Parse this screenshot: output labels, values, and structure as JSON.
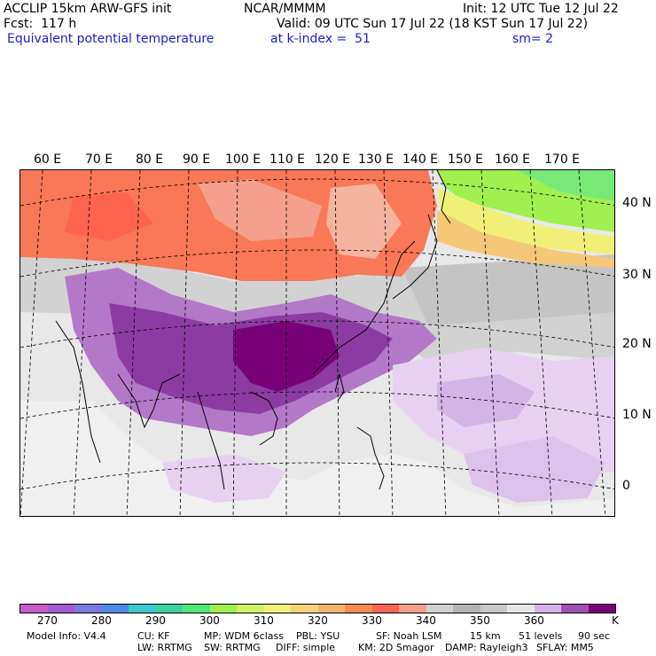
{
  "header": {
    "model": "ACCLIP 15km ARW-GFS init",
    "org": "NCAR/MMMM",
    "init": "Init: 12 UTC Tue 12 Jul 22",
    "forecast": "Fcst:  117 h",
    "valid": "Valid: 09 UTC Sun 17 Jul 22 (18 KST Sun 17 Jul 22)",
    "field": "Equivalent potential temperature",
    "level": "at k-index =  51",
    "smoothing": "sm= 2"
  },
  "longitude_labels": [
    "60 E",
    "70 E",
    "80 E",
    "90 E",
    "100 E",
    "110 E",
    "120 E",
    "130 E",
    "140 E",
    "150 E",
    "160 E",
    "170 E"
  ],
  "latitude_labels": [
    "40 N",
    "30 N",
    "20 N",
    "10 N",
    "0"
  ],
  "colorbar": {
    "colors": [
      "#c85cc8",
      "#a05ad2",
      "#7a78e0",
      "#4a8ae6",
      "#3cc8c8",
      "#3ad2a0",
      "#50e678",
      "#a0f050",
      "#d2f064",
      "#f0f078",
      "#f5d278",
      "#f5b46e",
      "#f58c50",
      "#ff6450",
      "#f5a08c",
      "#d2d2d2",
      "#b4b4b4",
      "#c8c8c8",
      "#e6e6e6",
      "#d2b4e6",
      "#a050b4",
      "#780078"
    ],
    "tick_labels": [
      "270",
      "280",
      "290",
      "300",
      "310",
      "320",
      "330",
      "340",
      "350",
      "360"
    ],
    "unit": "K"
  },
  "model_info": {
    "line1": [
      "Model Info: V4.4",
      "CU: KF",
      "MP: WDM 6class",
      "PBL: YSU",
      "SF: Noah LSM",
      "15 km",
      "51 levels",
      "90 sec"
    ],
    "line2": [
      "LW: RRTMG",
      "SW: RRTMG",
      "DIFF: simple",
      "KM: 2D Smagor",
      "DAMP: Rayleigh3",
      "SFLAY: MM5"
    ]
  }
}
